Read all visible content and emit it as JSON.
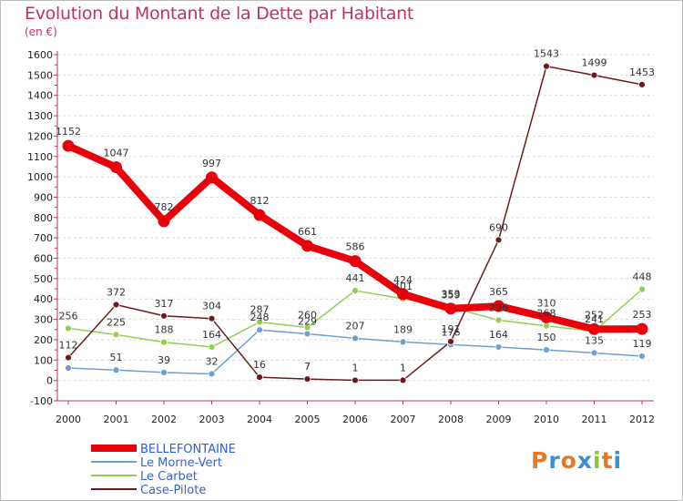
{
  "title": "Evolution du Montant de la Dette par Habitant",
  "unit_label": "(en €)",
  "logo": {
    "text": "Proxiti",
    "colors": [
      "#e8781f",
      "#3b8fd0",
      "#e8781f",
      "#3b8fd0",
      "#8cc63e",
      "#e8781f",
      "#3b8fd0"
    ]
  },
  "chart_data": {
    "type": "line",
    "title": "Evolution du Montant de la Dette par Habitant",
    "ylabel": "(en €)",
    "xlabel": "",
    "x": [
      "2000",
      "2001",
      "2002",
      "2003",
      "2004",
      "2005",
      "2006",
      "2007",
      "2008",
      "2009",
      "2010",
      "2011",
      "2012"
    ],
    "ylim": [
      -100,
      1600
    ],
    "yticks": [
      -100,
      0,
      100,
      200,
      300,
      400,
      500,
      600,
      700,
      800,
      900,
      1000,
      1100,
      1200,
      1300,
      1400,
      1500,
      1600
    ],
    "grid": "horizontal dashed",
    "legend_position": "bottom-left",
    "series": [
      {
        "name": "BELLEFONTAINE",
        "color": "#e8000b",
        "values": [
          1152,
          1047,
          782,
          997,
          812,
          661,
          586,
          424,
          353,
          365,
          310,
          252,
          253
        ],
        "labels": [
          "1152",
          "1047",
          "782",
          "997",
          "812",
          "661",
          "586",
          "424",
          "353",
          "365",
          "310",
          "252",
          "253"
        ]
      },
      {
        "name": "Le Morne-Vert",
        "color": "#6f9fcf",
        "values": [
          61,
          51,
          39,
          32,
          248,
          229,
          207,
          189,
          176,
          164,
          150,
          135,
          119
        ],
        "labels": [
          "",
          "51",
          "39",
          "32",
          "248",
          "229",
          "207",
          "189",
          "176",
          "164",
          "150",
          "135",
          "119"
        ]
      },
      {
        "name": "Le Carbet",
        "color": "#8fd14f",
        "values": [
          256,
          225,
          188,
          164,
          287,
          260,
          441,
          401,
          359,
          296,
          268,
          241,
          448
        ],
        "labels": [
          "256",
          "225",
          "188",
          "164",
          "287",
          "260",
          "441",
          "401",
          "359",
          "296",
          "268",
          "241",
          "448"
        ]
      },
      {
        "name": "Case-Pilote",
        "color": "#6b1b1f",
        "values": [
          112,
          372,
          317,
          304,
          16,
          7,
          1,
          1,
          191,
          690,
          1543,
          1499,
          1453
        ],
        "labels": [
          "112",
          "372",
          "317",
          "304",
          "16",
          "7",
          "1",
          "1",
          "191",
          "690",
          "1543",
          "1499",
          "1453"
        ]
      }
    ]
  }
}
